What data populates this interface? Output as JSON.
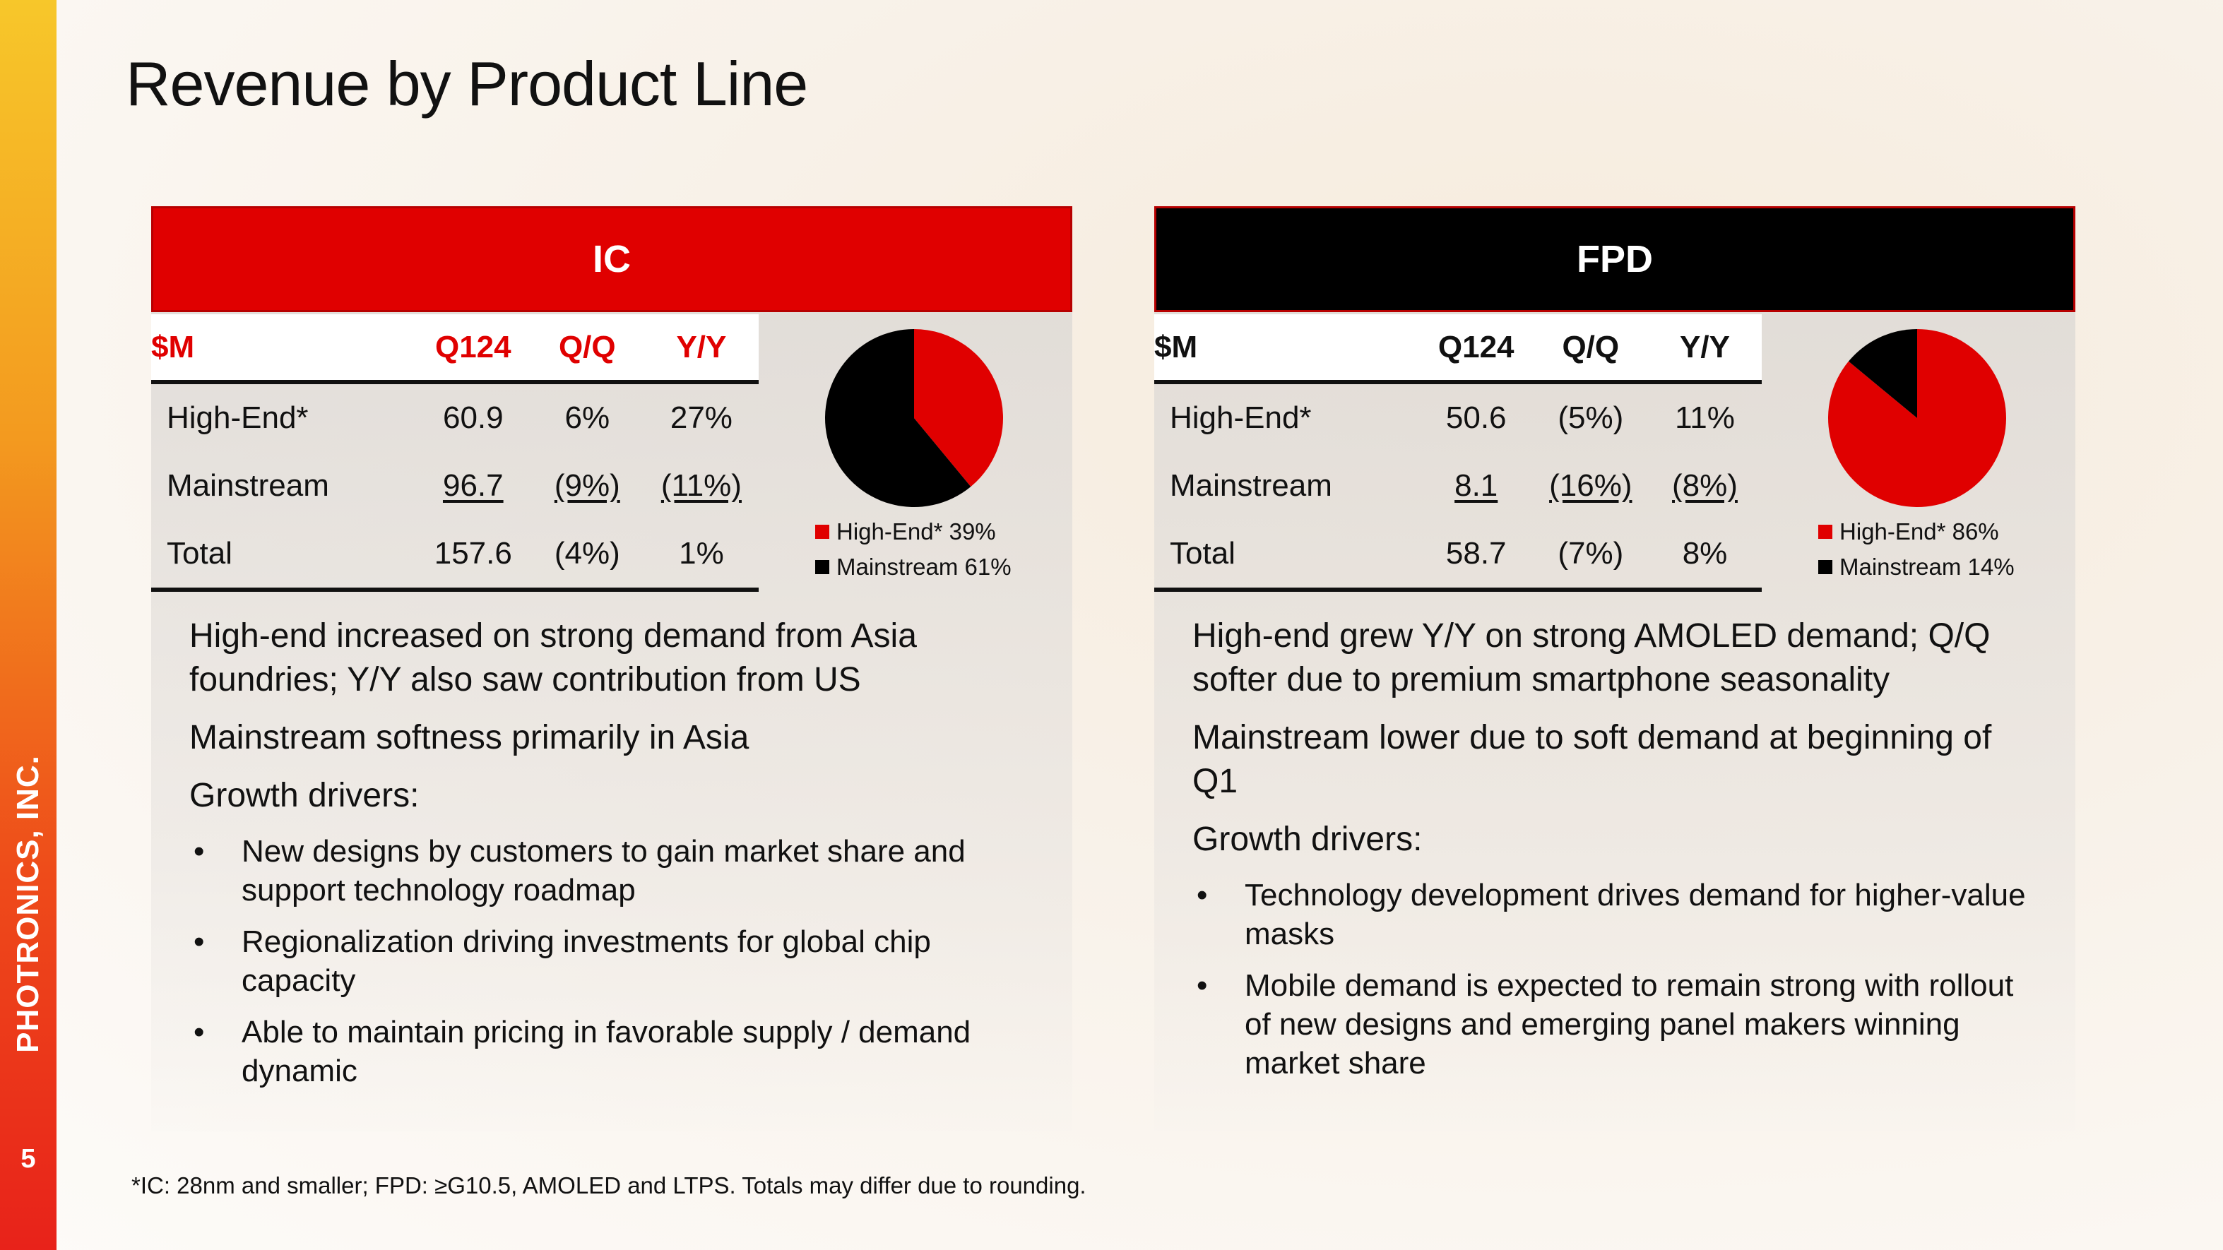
{
  "slide": {
    "title": "Revenue by Product Line",
    "company": "PHOTRONICS, INC.",
    "page_number": "5",
    "footnote": "*IC: 28nm and smaller; FPD: ≥G10.5, AMOLED and LTPS. Totals may differ due to rounding."
  },
  "colors": {
    "accent_red": "#e00000",
    "black": "#000000"
  },
  "ic": {
    "header": "IC",
    "columns": [
      "$M",
      "Q124",
      "Q/Q",
      "Y/Y"
    ],
    "rows": [
      {
        "label": "High-End*",
        "q124": "60.9",
        "qq": "6%",
        "yy": "27%"
      },
      {
        "label": "Mainstream",
        "q124": "96.7",
        "qq": "(9%)",
        "yy": "(11%)"
      },
      {
        "label": "Total",
        "q124": "157.6",
        "qq": "(4%)",
        "yy": "1%"
      }
    ],
    "notes": [
      "High-end increased on strong demand from Asia foundries; Y/Y also saw contribution from US",
      "Mainstream softness primarily in Asia",
      "Growth drivers:"
    ],
    "bullets": [
      "New designs by customers to gain market share and support technology roadmap",
      "Regionalization driving investments for global chip capacity",
      "Able to maintain pricing in favorable supply / demand dynamic"
    ]
  },
  "fpd": {
    "header": "FPD",
    "columns": [
      "$M",
      "Q124",
      "Q/Q",
      "Y/Y"
    ],
    "rows": [
      {
        "label": "High-End*",
        "q124": "50.6",
        "qq": "(5%)",
        "yy": "11%"
      },
      {
        "label": "Mainstream",
        "q124": "8.1",
        "qq": "(16%)",
        "yy": "(8%)"
      },
      {
        "label": "Total",
        "q124": "58.7",
        "qq": "(7%)",
        "yy": "8%"
      }
    ],
    "notes": [
      "High-end grew Y/Y on strong AMOLED demand; Q/Q softer due to premium smartphone seasonality",
      "Mainstream lower due to soft demand at beginning of Q1",
      "Growth drivers:"
    ],
    "bullets": [
      "Technology development drives demand for higher-value masks",
      "Mobile demand is expected to remain strong with rollout of new designs and emerging panel makers winning market share"
    ]
  },
  "chart_data": [
    {
      "type": "pie",
      "title": "",
      "categories": [
        "High-End*",
        "Mainstream"
      ],
      "values": [
        39,
        61
      ],
      "legend": [
        "High-End* 39%",
        "Mainstream 61%"
      ],
      "colors": [
        "#e00000",
        "#000000"
      ],
      "legend_placement": "bottom"
    },
    {
      "type": "pie",
      "title": "",
      "categories": [
        "High-End*",
        "Mainstream"
      ],
      "values": [
        86,
        14
      ],
      "legend": [
        "High-End* 86%",
        "Mainstream 14%"
      ],
      "colors": [
        "#e00000",
        "#000000"
      ],
      "legend_placement": "bottom"
    }
  ]
}
